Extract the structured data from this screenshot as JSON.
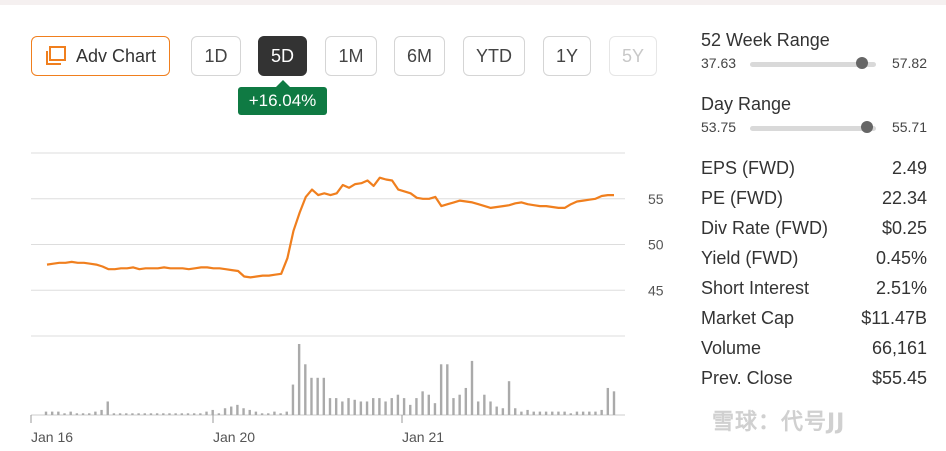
{
  "toolbar": {
    "adv_chart_label": "Adv Chart",
    "ranges": [
      "1D",
      "5D",
      "1M",
      "6M",
      "YTD",
      "1Y",
      "5Y"
    ],
    "active_range": "5D",
    "change_badge": "+16.04%"
  },
  "chart_data": {
    "type": "line",
    "x_labels": [
      "Jan 16",
      "Jan 20",
      "Jan 21"
    ],
    "y_ticks": [
      45,
      50,
      55
    ],
    "ylim": [
      40,
      60
    ],
    "grid": true,
    "line_color": "#f07f1e",
    "volume_color": "#aaaaaa",
    "price": [
      47.8,
      47.9,
      48.0,
      48.0,
      48.1,
      48.0,
      48.0,
      47.9,
      47.8,
      47.6,
      47.3,
      47.3,
      47.4,
      47.4,
      47.5,
      47.3,
      47.4,
      47.4,
      47.4,
      47.5,
      47.4,
      47.4,
      47.4,
      47.3,
      47.4,
      47.5,
      47.5,
      47.4,
      47.4,
      47.3,
      47.2,
      47.1,
      46.5,
      46.4,
      46.5,
      46.6,
      46.6,
      46.7,
      46.8,
      48.5,
      51.5,
      53.5,
      55.2,
      56.0,
      55.4,
      55.6,
      55.4,
      55.6,
      56.5,
      56.2,
      56.6,
      56.7,
      57.0,
      56.4,
      57.3,
      57.1,
      57.0,
      56.0,
      55.8,
      55.6,
      55.1,
      55.0,
      55.0,
      55.2,
      54.2,
      54.4,
      54.6,
      54.8,
      54.7,
      54.6,
      54.4,
      54.2,
      54.0,
      54.1,
      54.2,
      54.3,
      54.5,
      54.6,
      54.4,
      54.3,
      54.2,
      54.2,
      54.1,
      54.0,
      54.0,
      54.4,
      54.7,
      54.8,
      54.9,
      55.0,
      55.3,
      55.4,
      55.4
    ],
    "volume": [
      2,
      2,
      2,
      1,
      2,
      1,
      1,
      1,
      2,
      3,
      8,
      1,
      1,
      1,
      1,
      1,
      1,
      1,
      1,
      1,
      1,
      1,
      1,
      1,
      1,
      1,
      2,
      3,
      1,
      4,
      5,
      6,
      4,
      3,
      2,
      1,
      1,
      2,
      1,
      2,
      18,
      42,
      30,
      22,
      22,
      22,
      10,
      10,
      8,
      10,
      9,
      8,
      8,
      10,
      10,
      8,
      10,
      12,
      10,
      6,
      10,
      14,
      12,
      7,
      30,
      30,
      10,
      12,
      16,
      32,
      8,
      12,
      8,
      5,
      4,
      20,
      4,
      2,
      3,
      2,
      2,
      2,
      2,
      2,
      2,
      1,
      2,
      2,
      2,
      2,
      3,
      16,
      14
    ]
  },
  "ranges_panel": {
    "week52": {
      "title": "52 Week Range",
      "low": "37.63",
      "high": "57.82",
      "position": 0.89
    },
    "day": {
      "title": "Day Range",
      "low": "53.75",
      "high": "55.71",
      "position": 0.93
    }
  },
  "stats": [
    {
      "label": "EPS (FWD)",
      "value": "2.49"
    },
    {
      "label": "PE (FWD)",
      "value": "22.34"
    },
    {
      "label": "Div Rate (FWD)",
      "value": "$0.25"
    },
    {
      "label": "Yield (FWD)",
      "value": "0.45%"
    },
    {
      "label": "Short Interest",
      "value": "2.51%"
    },
    {
      "label": "Market Cap",
      "value": "$11.47B"
    },
    {
      "label": "Volume",
      "value": "66,161"
    },
    {
      "label": "Prev. Close",
      "value": "$55.45"
    }
  ],
  "watermark": "雪球：代号JJ"
}
